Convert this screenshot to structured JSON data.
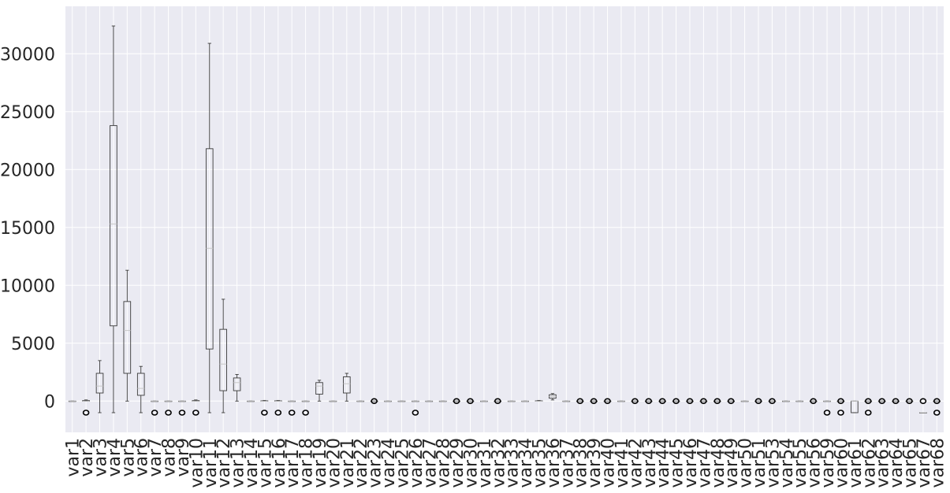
{
  "chart_data": {
    "type": "box",
    "title": "",
    "xlabel": "",
    "ylabel": "",
    "ylim": [
      -2700,
      34100
    ],
    "y_ticks": [
      0,
      5000,
      10000,
      15000,
      20000,
      25000,
      30000
    ],
    "y_tick_labels": [
      "0",
      "5000",
      "10000",
      "15000",
      "20000",
      "25000",
      "30000"
    ],
    "grid": true,
    "background": "#eaeaf2",
    "categories": [
      "var1",
      "var2",
      "var3",
      "var4",
      "var5",
      "var6",
      "var7",
      "var8",
      "var9",
      "var10",
      "var11",
      "var12",
      "var13",
      "var14",
      "var15",
      "var16",
      "var17",
      "var18",
      "var19",
      "var20",
      "var21",
      "var22",
      "var23",
      "var24",
      "var25",
      "var26",
      "var27",
      "var28",
      "var29",
      "var30",
      "var31",
      "var32",
      "var33",
      "var34",
      "var35",
      "var36",
      "var37",
      "var38",
      "var39",
      "var40",
      "var41",
      "var42",
      "var43",
      "var44",
      "var45",
      "var46",
      "var47",
      "var48",
      "var49",
      "var50",
      "var51",
      "var53",
      "var54",
      "var55",
      "var56",
      "var59",
      "var60",
      "var61",
      "var62",
      "var63",
      "var64",
      "var65",
      "var67",
      "var68"
    ],
    "boxes": [
      {
        "name": "var1",
        "whislo": 0,
        "q1": 0,
        "med": 0,
        "q3": 0,
        "whishi": 0,
        "fliers": []
      },
      {
        "name": "var2",
        "whislo": 0,
        "q1": 0,
        "med": 0,
        "q3": 50,
        "whishi": 100,
        "fliers": [
          -1000
        ]
      },
      {
        "name": "var3",
        "whislo": -1000,
        "q1": 700,
        "med": 1300,
        "q3": 2400,
        "whishi": 3500,
        "fliers": []
      },
      {
        "name": "var4",
        "whislo": -1000,
        "q1": 6500,
        "med": 15300,
        "q3": 23800,
        "whishi": 32400,
        "fliers": []
      },
      {
        "name": "var5",
        "whislo": 0,
        "q1": 2400,
        "med": 6100,
        "q3": 8600,
        "whishi": 11300,
        "fliers": []
      },
      {
        "name": "var6",
        "whislo": -1000,
        "q1": 500,
        "med": 1100,
        "q3": 2400,
        "whishi": 3000,
        "fliers": []
      },
      {
        "name": "var7",
        "whislo": 0,
        "q1": 0,
        "med": 0,
        "q3": 0,
        "whishi": 0,
        "fliers": [
          -1000
        ]
      },
      {
        "name": "var8",
        "whislo": 0,
        "q1": 0,
        "med": 0,
        "q3": 0,
        "whishi": 0,
        "fliers": [
          -1000
        ]
      },
      {
        "name": "var9",
        "whislo": 0,
        "q1": 0,
        "med": 0,
        "q3": 0,
        "whishi": 0,
        "fliers": [
          -1000
        ]
      },
      {
        "name": "var10",
        "whislo": 0,
        "q1": 0,
        "med": 0,
        "q3": 50,
        "whishi": 100,
        "fliers": [
          -1000
        ]
      },
      {
        "name": "var11",
        "whislo": -1000,
        "q1": 4500,
        "med": 13200,
        "q3": 21800,
        "whishi": 30900,
        "fliers": []
      },
      {
        "name": "var12",
        "whislo": -1000,
        "q1": 900,
        "med": 3200,
        "q3": 6200,
        "whishi": 8800,
        "fliers": []
      },
      {
        "name": "var13",
        "whislo": 0,
        "q1": 900,
        "med": 1600,
        "q3": 2000,
        "whishi": 2300,
        "fliers": []
      },
      {
        "name": "var14",
        "whislo": 0,
        "q1": 0,
        "med": 0,
        "q3": 0,
        "whishi": 0,
        "fliers": []
      },
      {
        "name": "var15",
        "whislo": 0,
        "q1": 0,
        "med": 0,
        "q3": 30,
        "whishi": 60,
        "fliers": [
          -1000
        ]
      },
      {
        "name": "var16",
        "whislo": 0,
        "q1": 0,
        "med": 0,
        "q3": 30,
        "whishi": 60,
        "fliers": [
          -1000
        ]
      },
      {
        "name": "var17",
        "whislo": 0,
        "q1": 0,
        "med": 0,
        "q3": 0,
        "whishi": 0,
        "fliers": [
          -1000
        ]
      },
      {
        "name": "var18",
        "whislo": 0,
        "q1": 0,
        "med": 0,
        "q3": 0,
        "whishi": 0,
        "fliers": [
          -1000
        ]
      },
      {
        "name": "var19",
        "whislo": 0,
        "q1": 600,
        "med": 1300,
        "q3": 1600,
        "whishi": 1800,
        "fliers": []
      },
      {
        "name": "var20",
        "whislo": 0,
        "q1": 0,
        "med": 0,
        "q3": 0,
        "whishi": 0,
        "fliers": []
      },
      {
        "name": "var21",
        "whislo": 0,
        "q1": 700,
        "med": 1500,
        "q3": 2100,
        "whishi": 2400,
        "fliers": []
      },
      {
        "name": "var22",
        "whislo": 0,
        "q1": 0,
        "med": 0,
        "q3": 0,
        "whishi": 0,
        "fliers": []
      },
      {
        "name": "var23",
        "whislo": 0,
        "q1": 0,
        "med": 0,
        "q3": 0,
        "whishi": 0,
        "fliers": [
          0
        ]
      },
      {
        "name": "var24",
        "whislo": 0,
        "q1": 0,
        "med": 0,
        "q3": 0,
        "whishi": 0,
        "fliers": []
      },
      {
        "name": "var25",
        "whislo": 0,
        "q1": 0,
        "med": 0,
        "q3": 0,
        "whishi": 0,
        "fliers": []
      },
      {
        "name": "var26",
        "whislo": 0,
        "q1": 0,
        "med": 0,
        "q3": 0,
        "whishi": 0,
        "fliers": [
          -1000
        ]
      },
      {
        "name": "var27",
        "whislo": 0,
        "q1": 0,
        "med": 0,
        "q3": 0,
        "whishi": 0,
        "fliers": []
      },
      {
        "name": "var28",
        "whislo": 0,
        "q1": 0,
        "med": 0,
        "q3": 0,
        "whishi": 0,
        "fliers": []
      },
      {
        "name": "var29",
        "whislo": 0,
        "q1": 0,
        "med": 0,
        "q3": 0,
        "whishi": 0,
        "fliers": [
          0
        ]
      },
      {
        "name": "var30",
        "whislo": 0,
        "q1": 0,
        "med": 0,
        "q3": 0,
        "whishi": 0,
        "fliers": [
          0
        ]
      },
      {
        "name": "var31",
        "whislo": 0,
        "q1": 0,
        "med": 0,
        "q3": 0,
        "whishi": 0,
        "fliers": []
      },
      {
        "name": "var32",
        "whislo": 0,
        "q1": 0,
        "med": 0,
        "q3": 0,
        "whishi": 0,
        "fliers": [
          0
        ]
      },
      {
        "name": "var33",
        "whislo": 0,
        "q1": 0,
        "med": 0,
        "q3": 0,
        "whishi": 0,
        "fliers": []
      },
      {
        "name": "var34",
        "whislo": 0,
        "q1": 0,
        "med": 0,
        "q3": 0,
        "whishi": 0,
        "fliers": []
      },
      {
        "name": "var35",
        "whislo": 0,
        "q1": 0,
        "med": 0,
        "q3": 30,
        "whishi": 60,
        "fliers": []
      },
      {
        "name": "var36",
        "whislo": 100,
        "q1": 250,
        "med": 400,
        "q3": 550,
        "whishi": 650,
        "fliers": []
      },
      {
        "name": "var37",
        "whislo": 0,
        "q1": 0,
        "med": 0,
        "q3": 0,
        "whishi": 0,
        "fliers": []
      },
      {
        "name": "var38",
        "whislo": 0,
        "q1": 0,
        "med": 0,
        "q3": 0,
        "whishi": 0,
        "fliers": [
          0
        ]
      },
      {
        "name": "var39",
        "whislo": 0,
        "q1": 0,
        "med": 0,
        "q3": 0,
        "whishi": 0,
        "fliers": [
          0
        ]
      },
      {
        "name": "var40",
        "whislo": 0,
        "q1": 0,
        "med": 0,
        "q3": 0,
        "whishi": 0,
        "fliers": [
          0
        ]
      },
      {
        "name": "var41",
        "whislo": 0,
        "q1": 0,
        "med": 0,
        "q3": 0,
        "whishi": 0,
        "fliers": []
      },
      {
        "name": "var42",
        "whislo": 0,
        "q1": 0,
        "med": 0,
        "q3": 0,
        "whishi": 0,
        "fliers": [
          0
        ]
      },
      {
        "name": "var43",
        "whislo": 0,
        "q1": 0,
        "med": 0,
        "q3": 0,
        "whishi": 0,
        "fliers": [
          0
        ]
      },
      {
        "name": "var44",
        "whislo": 0,
        "q1": 0,
        "med": 0,
        "q3": 0,
        "whishi": 0,
        "fliers": [
          0
        ]
      },
      {
        "name": "var45",
        "whislo": 0,
        "q1": 0,
        "med": 0,
        "q3": 0,
        "whishi": 0,
        "fliers": [
          0
        ]
      },
      {
        "name": "var46",
        "whislo": 0,
        "q1": 0,
        "med": 0,
        "q3": 0,
        "whishi": 0,
        "fliers": [
          0
        ]
      },
      {
        "name": "var47",
        "whislo": 0,
        "q1": 0,
        "med": 0,
        "q3": 0,
        "whishi": 0,
        "fliers": [
          0
        ]
      },
      {
        "name": "var48",
        "whislo": 0,
        "q1": 0,
        "med": 0,
        "q3": 0,
        "whishi": 0,
        "fliers": [
          0
        ]
      },
      {
        "name": "var49",
        "whislo": 0,
        "q1": 0,
        "med": 0,
        "q3": 0,
        "whishi": 0,
        "fliers": [
          0
        ]
      },
      {
        "name": "var50",
        "whislo": 0,
        "q1": 0,
        "med": 0,
        "q3": 0,
        "whishi": 0,
        "fliers": []
      },
      {
        "name": "var51",
        "whislo": 0,
        "q1": 0,
        "med": 0,
        "q3": 0,
        "whishi": 0,
        "fliers": [
          0
        ]
      },
      {
        "name": "var53",
        "whislo": 0,
        "q1": 0,
        "med": 0,
        "q3": 0,
        "whishi": 0,
        "fliers": [
          0
        ]
      },
      {
        "name": "var54",
        "whislo": 0,
        "q1": 0,
        "med": 0,
        "q3": 0,
        "whishi": 0,
        "fliers": []
      },
      {
        "name": "var55",
        "whislo": 0,
        "q1": 0,
        "med": 0,
        "q3": 0,
        "whishi": 0,
        "fliers": []
      },
      {
        "name": "var56",
        "whislo": 0,
        "q1": 0,
        "med": 0,
        "q3": 0,
        "whishi": 0,
        "fliers": [
          0
        ]
      },
      {
        "name": "var59",
        "whislo": 0,
        "q1": 0,
        "med": 0,
        "q3": 0,
        "whishi": 0,
        "fliers": [
          -1000
        ]
      },
      {
        "name": "var60",
        "whislo": 0,
        "q1": 0,
        "med": 0,
        "q3": 0,
        "whishi": 0,
        "fliers": [
          -1000,
          0
        ]
      },
      {
        "name": "var61",
        "whislo": -1000,
        "q1": -1000,
        "med": 0,
        "q3": 0,
        "whishi": 0,
        "fliers": []
      },
      {
        "name": "var62",
        "whislo": 0,
        "q1": 0,
        "med": 0,
        "q3": 0,
        "whishi": 0,
        "fliers": [
          -1000,
          0
        ]
      },
      {
        "name": "var63",
        "whislo": 0,
        "q1": 0,
        "med": 0,
        "q3": 0,
        "whishi": 0,
        "fliers": [
          0
        ]
      },
      {
        "name": "var64",
        "whislo": 0,
        "q1": 0,
        "med": 0,
        "q3": 0,
        "whishi": 0,
        "fliers": [
          0
        ]
      },
      {
        "name": "var65",
        "whislo": 0,
        "q1": 0,
        "med": 0,
        "q3": 0,
        "whishi": 0,
        "fliers": [
          0
        ]
      },
      {
        "name": "var67",
        "whislo": -1000,
        "q1": -1000,
        "med": -1000,
        "q3": -1000,
        "whishi": -1000,
        "fliers": [
          0
        ]
      },
      {
        "name": "var68",
        "whislo": 0,
        "q1": 0,
        "med": 0,
        "q3": 0,
        "whishi": 0,
        "fliers": [
          -1000,
          0
        ]
      }
    ],
    "colors": {
      "plot_bg": "#eaeaf2",
      "grid": "#ffffff",
      "box_stroke": "#3a3a3a",
      "median": "#c8c8c8",
      "flier": "#000000",
      "tick_text": "#262626"
    }
  }
}
